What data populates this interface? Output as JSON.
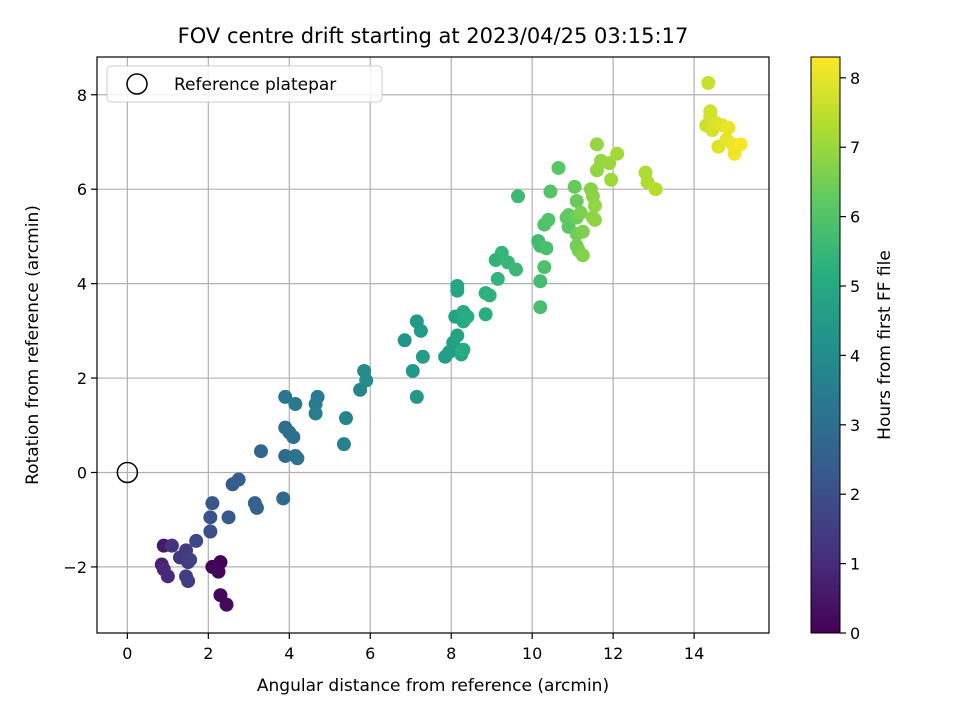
{
  "chart_data": {
    "type": "scatter",
    "title": "FOV centre drift starting at 2023/04/25 03:15:17",
    "xlabel": "Angular distance from reference (arcmin)",
    "ylabel": "Rotation from reference (arcmin)",
    "xlim": [
      -0.75,
      15.85
    ],
    "ylim": [
      -3.4,
      8.8
    ],
    "xticks": [
      0,
      2,
      4,
      6,
      8,
      10,
      12,
      14
    ],
    "yticks": [
      -2,
      0,
      2,
      4,
      6,
      8
    ],
    "grid": true,
    "legend": {
      "placement": "top-left",
      "entries": [
        "Reference platepar"
      ]
    },
    "reference_point": {
      "x": 0,
      "y": 0,
      "label": "Reference platepar"
    },
    "colorbar": {
      "label": "Hours from first FF file",
      "colormap": "viridis",
      "range": [
        0,
        8.3
      ],
      "ticks": [
        0,
        1,
        2,
        3,
        4,
        5,
        6,
        7,
        8
      ]
    },
    "points": [
      {
        "x": 2.3,
        "y": -1.9,
        "c": 0.0
      },
      {
        "x": 2.1,
        "y": -2.0,
        "c": 0.05
      },
      {
        "x": 2.25,
        "y": -2.1,
        "c": 0.1
      },
      {
        "x": 2.3,
        "y": -2.6,
        "c": 0.15
      },
      {
        "x": 2.45,
        "y": -2.8,
        "c": 0.2
      },
      {
        "x": 0.9,
        "y": -1.55,
        "c": 0.6
      },
      {
        "x": 0.85,
        "y": -1.95,
        "c": 0.8
      },
      {
        "x": 0.9,
        "y": -2.05,
        "c": 0.9
      },
      {
        "x": 1.0,
        "y": -2.2,
        "c": 1.0
      },
      {
        "x": 1.1,
        "y": -1.55,
        "c": 1.2
      },
      {
        "x": 1.3,
        "y": -1.8,
        "c": 1.3
      },
      {
        "x": 1.45,
        "y": -1.65,
        "c": 1.4
      },
      {
        "x": 1.5,
        "y": -1.9,
        "c": 1.45
      },
      {
        "x": 1.45,
        "y": -2.2,
        "c": 1.5
      },
      {
        "x": 1.5,
        "y": -2.3,
        "c": 1.55
      },
      {
        "x": 1.55,
        "y": -1.85,
        "c": 1.6
      },
      {
        "x": 1.7,
        "y": -1.45,
        "c": 1.8
      },
      {
        "x": 2.05,
        "y": -1.25,
        "c": 2.0
      },
      {
        "x": 2.05,
        "y": -0.95,
        "c": 2.1
      },
      {
        "x": 2.1,
        "y": -0.65,
        "c": 2.2
      },
      {
        "x": 2.5,
        "y": -0.95,
        "c": 2.3
      },
      {
        "x": 2.6,
        "y": -0.25,
        "c": 2.4
      },
      {
        "x": 2.75,
        "y": -0.15,
        "c": 2.5
      },
      {
        "x": 3.15,
        "y": -0.65,
        "c": 2.6
      },
      {
        "x": 3.2,
        "y": -0.75,
        "c": 2.65
      },
      {
        "x": 3.3,
        "y": 0.45,
        "c": 2.7
      },
      {
        "x": 3.85,
        "y": -0.55,
        "c": 2.8
      },
      {
        "x": 3.9,
        "y": 0.35,
        "c": 2.9
      },
      {
        "x": 3.9,
        "y": 0.95,
        "c": 2.95
      },
      {
        "x": 4.0,
        "y": 0.85,
        "c": 3.0
      },
      {
        "x": 4.1,
        "y": 0.75,
        "c": 3.05
      },
      {
        "x": 4.2,
        "y": 0.3,
        "c": 3.1
      },
      {
        "x": 4.15,
        "y": 0.35,
        "c": 3.15
      },
      {
        "x": 3.9,
        "y": 1.6,
        "c": 3.2
      },
      {
        "x": 4.15,
        "y": 1.45,
        "c": 3.3
      },
      {
        "x": 4.65,
        "y": 1.45,
        "c": 3.4
      },
      {
        "x": 4.7,
        "y": 1.6,
        "c": 3.45
      },
      {
        "x": 4.65,
        "y": 1.25,
        "c": 3.5
      },
      {
        "x": 5.35,
        "y": 0.6,
        "c": 3.6
      },
      {
        "x": 5.4,
        "y": 1.15,
        "c": 3.7
      },
      {
        "x": 5.75,
        "y": 1.75,
        "c": 3.8
      },
      {
        "x": 5.85,
        "y": 2.15,
        "c": 3.9
      },
      {
        "x": 5.9,
        "y": 1.95,
        "c": 4.0
      },
      {
        "x": 6.85,
        "y": 2.8,
        "c": 4.3
      },
      {
        "x": 7.05,
        "y": 2.15,
        "c": 4.35
      },
      {
        "x": 7.15,
        "y": 1.6,
        "c": 4.4
      },
      {
        "x": 7.15,
        "y": 3.2,
        "c": 4.45
      },
      {
        "x": 7.25,
        "y": 3.0,
        "c": 4.5
      },
      {
        "x": 7.3,
        "y": 2.45,
        "c": 4.55
      },
      {
        "x": 7.85,
        "y": 2.45,
        "c": 4.6
      },
      {
        "x": 7.95,
        "y": 2.55,
        "c": 4.65
      },
      {
        "x": 8.05,
        "y": 2.75,
        "c": 4.7
      },
      {
        "x": 8.1,
        "y": 3.3,
        "c": 4.75
      },
      {
        "x": 8.15,
        "y": 2.9,
        "c": 4.8
      },
      {
        "x": 8.15,
        "y": 3.85,
        "c": 4.85
      },
      {
        "x": 8.15,
        "y": 3.95,
        "c": 4.9
      },
      {
        "x": 8.25,
        "y": 2.5,
        "c": 4.95
      },
      {
        "x": 8.3,
        "y": 2.6,
        "c": 5.0
      },
      {
        "x": 8.3,
        "y": 3.2,
        "c": 5.05
      },
      {
        "x": 8.3,
        "y": 3.4,
        "c": 5.1
      },
      {
        "x": 8.4,
        "y": 3.3,
        "c": 5.15
      },
      {
        "x": 8.85,
        "y": 3.35,
        "c": 5.2
      },
      {
        "x": 8.85,
        "y": 3.8,
        "c": 5.25
      },
      {
        "x": 8.95,
        "y": 3.75,
        "c": 5.3
      },
      {
        "x": 9.1,
        "y": 4.5,
        "c": 5.35
      },
      {
        "x": 9.15,
        "y": 4.1,
        "c": 5.4
      },
      {
        "x": 9.25,
        "y": 4.65,
        "c": 5.45
      },
      {
        "x": 9.4,
        "y": 4.45,
        "c": 5.5
      },
      {
        "x": 9.6,
        "y": 4.3,
        "c": 5.55
      },
      {
        "x": 9.65,
        "y": 5.85,
        "c": 5.6
      },
      {
        "x": 10.15,
        "y": 4.9,
        "c": 5.65
      },
      {
        "x": 10.2,
        "y": 4.8,
        "c": 5.7
      },
      {
        "x": 10.2,
        "y": 4.05,
        "c": 5.75
      },
      {
        "x": 10.2,
        "y": 3.5,
        "c": 5.8
      },
      {
        "x": 10.35,
        "y": 4.75,
        "c": 5.85
      },
      {
        "x": 10.3,
        "y": 4.35,
        "c": 5.9
      },
      {
        "x": 10.3,
        "y": 5.25,
        "c": 5.95
      },
      {
        "x": 10.4,
        "y": 5.35,
        "c": 6.0
      },
      {
        "x": 10.45,
        "y": 5.95,
        "c": 6.05
      },
      {
        "x": 10.65,
        "y": 6.45,
        "c": 6.1
      },
      {
        "x": 10.85,
        "y": 5.4,
        "c": 6.15
      },
      {
        "x": 10.9,
        "y": 5.2,
        "c": 6.2
      },
      {
        "x": 10.9,
        "y": 5.45,
        "c": 6.25
      },
      {
        "x": 11.05,
        "y": 6.05,
        "c": 6.3
      },
      {
        "x": 11.1,
        "y": 5.75,
        "c": 6.35
      },
      {
        "x": 11.1,
        "y": 5.4,
        "c": 6.4
      },
      {
        "x": 11.1,
        "y": 5.05,
        "c": 6.45
      },
      {
        "x": 11.1,
        "y": 4.8,
        "c": 6.5
      },
      {
        "x": 11.15,
        "y": 4.7,
        "c": 6.55
      },
      {
        "x": 11.2,
        "y": 5.5,
        "c": 6.6
      },
      {
        "x": 11.25,
        "y": 5.1,
        "c": 6.65
      },
      {
        "x": 11.25,
        "y": 4.6,
        "c": 6.7
      },
      {
        "x": 11.45,
        "y": 6.0,
        "c": 6.75
      },
      {
        "x": 11.5,
        "y": 5.85,
        "c": 6.8
      },
      {
        "x": 11.5,
        "y": 5.4,
        "c": 6.82
      },
      {
        "x": 11.55,
        "y": 5.35,
        "c": 6.85
      },
      {
        "x": 11.55,
        "y": 5.65,
        "c": 6.88
      },
      {
        "x": 11.6,
        "y": 6.4,
        "c": 6.9
      },
      {
        "x": 11.6,
        "y": 6.95,
        "c": 6.92
      },
      {
        "x": 11.7,
        "y": 6.6,
        "c": 6.95
      },
      {
        "x": 11.9,
        "y": 6.55,
        "c": 7.0
      },
      {
        "x": 11.95,
        "y": 6.2,
        "c": 7.05
      },
      {
        "x": 12.1,
        "y": 6.75,
        "c": 7.1
      },
      {
        "x": 12.8,
        "y": 6.35,
        "c": 7.25
      },
      {
        "x": 12.85,
        "y": 6.15,
        "c": 7.3
      },
      {
        "x": 13.05,
        "y": 6.0,
        "c": 7.35
      },
      {
        "x": 14.35,
        "y": 8.25,
        "c": 7.6
      },
      {
        "x": 14.3,
        "y": 7.35,
        "c": 7.65
      },
      {
        "x": 14.4,
        "y": 7.65,
        "c": 7.7
      },
      {
        "x": 14.4,
        "y": 7.55,
        "c": 7.75
      },
      {
        "x": 14.45,
        "y": 7.25,
        "c": 7.8
      },
      {
        "x": 14.55,
        "y": 7.4,
        "c": 7.85
      },
      {
        "x": 14.6,
        "y": 6.9,
        "c": 7.9
      },
      {
        "x": 14.7,
        "y": 7.35,
        "c": 7.95
      },
      {
        "x": 14.8,
        "y": 7.05,
        "c": 8.0
      },
      {
        "x": 14.85,
        "y": 7.3,
        "c": 8.05
      },
      {
        "x": 14.95,
        "y": 6.95,
        "c": 8.1
      },
      {
        "x": 15.0,
        "y": 6.75,
        "c": 8.15
      },
      {
        "x": 15.15,
        "y": 6.95,
        "c": 8.2
      }
    ]
  }
}
